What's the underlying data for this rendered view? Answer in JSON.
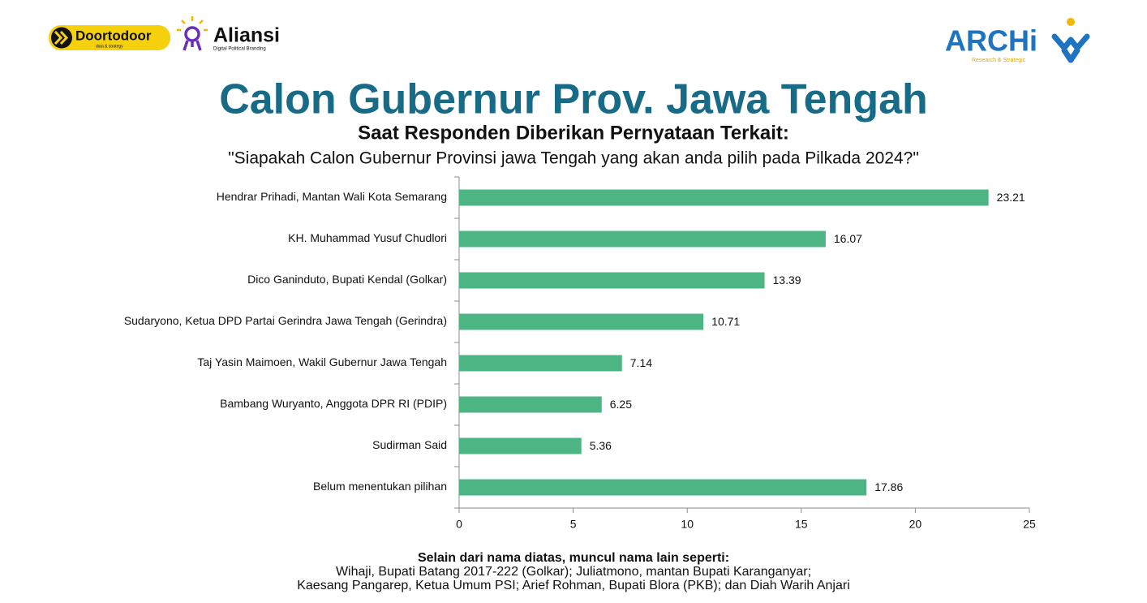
{
  "logos": {
    "doortodoor": "Doortodoor",
    "doortodoor_tagline": "data & strategy",
    "aliansi": "Aliansi",
    "aliansi_tagline": "Digital Political Branding",
    "archi": "ARCHi",
    "archi_tagline": "Research & Strategic"
  },
  "chart_data": {
    "type": "hbar",
    "title": "Calon Gubernur Prov. Jawa Tengah",
    "subtitle": "Saat Responden Diberikan Pernyataan Terkait:",
    "question": "\"Siapakah Calon Gubernur Provinsi jawa Tengah yang akan anda pilih pada Pilkada 2024?\"",
    "categories": [
      "Hendrar Prihadi, Mantan Wali Kota Semarang",
      "KH. Muhammad Yusuf Chudlori",
      "Dico Ganinduto, Bupati Kendal (Golkar)",
      "Sudaryono, Ketua DPD Partai Gerindra Jawa Tengah (Gerindra)",
      "Taj Yasin Maimoen, Wakil Gubernur Jawa Tengah",
      "Bambang Wuryanto, Anggota DPR RI (PDIP)",
      "Sudirman Said",
      "Belum menentukan pilihan"
    ],
    "values": [
      23.21,
      16.07,
      13.39,
      10.71,
      7.14,
      6.25,
      5.36,
      17.86
    ],
    "color": "#4db584",
    "xlim": [
      0,
      25
    ],
    "xticks": [
      0,
      5,
      10,
      15,
      20,
      25
    ]
  },
  "note": {
    "heading": "Selain dari nama diatas, muncul nama lain seperti:",
    "lines": [
      "Wihaji, Bupati Batang 2017-222 (Golkar); Juliatmono, mantan Bupati Karanganyar;",
      "Kaesang Pangarep, Ketua Umum PSI; Arief Rohman, Bupati Blora (PKB); dan Diah Warih Anjari"
    ]
  }
}
